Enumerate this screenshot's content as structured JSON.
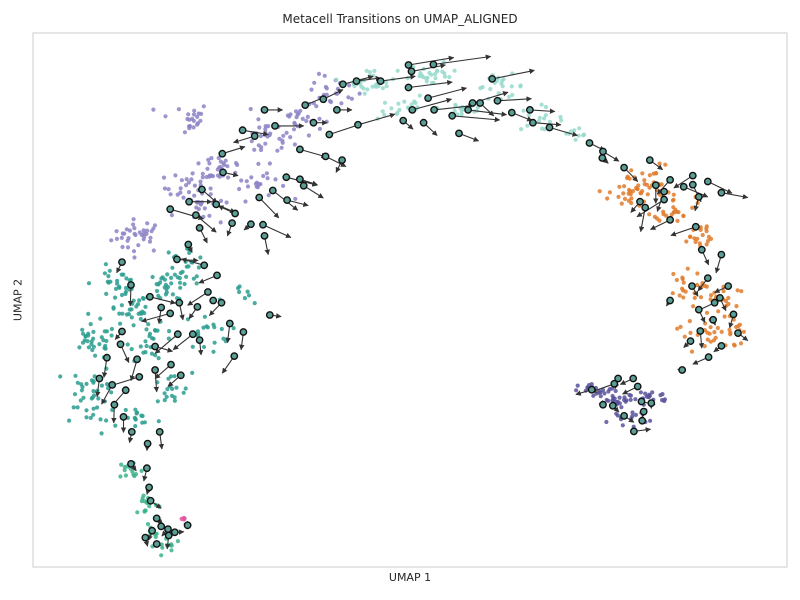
{
  "chart_data": {
    "type": "scatter",
    "title": "Metacell Transitions on UMAP_ALIGNED",
    "xlabel": "UMAP 1",
    "ylabel": "UMAP 2",
    "xlim": [
      0,
      100
    ],
    "ylim": [
      0,
      100
    ],
    "grid": false,
    "legend": "none",
    "colors": {
      "frame": "#cccccc",
      "arrow": "#333333",
      "metacell_edge": "#111111"
    },
    "clusters": [
      {
        "color": "#8c84c6",
        "centers": [
          [
            14,
            62
          ],
          [
            21,
            71
          ],
          [
            31,
            80
          ],
          [
            40,
            89
          ],
          [
            20,
            84
          ],
          [
            25,
            75
          ],
          [
            35,
            84
          ],
          [
            30,
            72
          ],
          [
            22,
            67
          ]
        ],
        "spread": [
          3.2,
          2.8
        ],
        "n": [
          35,
          30,
          28,
          24,
          22,
          26,
          24,
          22,
          20
        ]
      },
      {
        "color": "#97d9cb",
        "centers": [
          [
            45,
            91
          ],
          [
            53,
            92
          ],
          [
            62,
            90
          ],
          [
            67,
            84
          ],
          [
            72,
            80
          ],
          [
            49,
            86
          ],
          [
            57,
            86
          ]
        ],
        "spread": [
          3.0,
          2.0
        ],
        "n": [
          26,
          26,
          22,
          16,
          8,
          18,
          18
        ]
      },
      {
        "color": "#2a9d8f",
        "centers": [
          [
            8,
            42
          ],
          [
            13,
            48
          ],
          [
            18,
            52
          ],
          [
            8,
            34
          ],
          [
            16,
            42
          ],
          [
            20,
            57
          ],
          [
            11,
            53
          ],
          [
            23,
            44
          ],
          [
            18,
            33
          ],
          [
            28,
            50
          ],
          [
            8,
            28
          ],
          [
            14,
            28
          ]
        ],
        "spread": [
          2.8,
          3.0
        ],
        "n": [
          32,
          30,
          28,
          26,
          24,
          22,
          24,
          18,
          18,
          8,
          14,
          14
        ]
      },
      {
        "color": "#3bb38a",
        "centers": [
          [
            13,
            18
          ],
          [
            15,
            12
          ],
          [
            16,
            7
          ],
          [
            18,
            4
          ]
        ],
        "spread": [
          1.5,
          2.0
        ],
        "n": [
          14,
          14,
          12,
          10
        ]
      },
      {
        "color": "#e07b2c",
        "centers": [
          [
            79,
            70
          ],
          [
            85,
            68
          ],
          [
            88,
            62
          ],
          [
            86,
            52
          ],
          [
            91,
            50
          ],
          [
            92,
            44
          ],
          [
            88,
            44
          ],
          [
            82,
            72
          ]
        ],
        "spread": [
          2.4,
          3.0
        ],
        "n": [
          30,
          28,
          22,
          20,
          24,
          20,
          16,
          22
        ]
      },
      {
        "color": "#59549b",
        "centers": [
          [
            75,
            33
          ],
          [
            78,
            31
          ],
          [
            82,
            32
          ],
          [
            79,
            28
          ]
        ],
        "spread": [
          2.4,
          1.2
        ],
        "n": [
          22,
          22,
          18,
          16
        ]
      },
      {
        "color": "#e0559f",
        "centers": [
          [
            20,
            9
          ]
        ],
        "spread": [
          0.3,
          0.3
        ],
        "n": [
          4
        ]
      }
    ],
    "metacells": [
      {
        "x": 41.1,
        "y": 90.4,
        "dx": 4.0,
        "dy": 1.5
      },
      {
        "x": 42.9,
        "y": 91.0,
        "dx": 3.2,
        "dy": 0.6
      },
      {
        "x": 46.1,
        "y": 91.0,
        "dx": 4.6,
        "dy": 0.9
      },
      {
        "x": 49.8,
        "y": 94.0,
        "dx": 6.0,
        "dy": 1.4
      },
      {
        "x": 50.2,
        "y": 92.8,
        "dx": 4.5,
        "dy": 1.2
      },
      {
        "x": 53.1,
        "y": 94.1,
        "dx": 7.6,
        "dy": 1.5
      },
      {
        "x": 49.8,
        "y": 89.8,
        "dx": 5.8,
        "dy": 1.0
      },
      {
        "x": 52.4,
        "y": 87.8,
        "dx": 5.1,
        "dy": 1.9
      },
      {
        "x": 50.3,
        "y": 85.6,
        "dx": 5.2,
        "dy": 2.0
      },
      {
        "x": 53.2,
        "y": 85.6,
        "dx": 5.2,
        "dy": 0.8
      },
      {
        "x": 55.6,
        "y": 84.5,
        "dx": 6.3,
        "dy": -0.8
      },
      {
        "x": 57.7,
        "y": 85.6,
        "dx": 5.1,
        "dy": -0.9
      },
      {
        "x": 58.3,
        "y": 86.9,
        "dx": 4.7,
        "dy": 2.0
      },
      {
        "x": 60.9,
        "y": 91.4,
        "dx": 5.6,
        "dy": 1.6
      },
      {
        "x": 61.6,
        "y": 87.3,
        "dx": 4.5,
        "dy": 0.4
      },
      {
        "x": 63.5,
        "y": 85.1,
        "dx": 2.7,
        "dy": -1.5
      },
      {
        "x": 65.9,
        "y": 85.6,
        "dx": 3.3,
        "dy": -0.3
      },
      {
        "x": 66.3,
        "y": 83.2,
        "dx": 3.7,
        "dy": -0.4
      },
      {
        "x": 68.5,
        "y": 82.3,
        "dx": 3.7,
        "dy": -1.5
      },
      {
        "x": 56.5,
        "y": 81.2,
        "dx": 2.6,
        "dy": -1.4
      },
      {
        "x": 49.1,
        "y": 83.6,
        "dx": 1.3,
        "dy": -1.6
      },
      {
        "x": 51.8,
        "y": 83.2,
        "dx": 1.8,
        "dy": -2.4
      },
      {
        "x": 59.3,
        "y": 86.9,
        "dx": 1.8,
        "dy": -2.4
      },
      {
        "x": 73.8,
        "y": 79.4,
        "dx": 2.0,
        "dy": -1.4
      },
      {
        "x": 75.6,
        "y": 77.8,
        "dx": 2.1,
        "dy": -1.8
      },
      {
        "x": 38.5,
        "y": 87.6,
        "dx": 2.6,
        "dy": 1.8
      },
      {
        "x": 40.3,
        "y": 85.6,
        "dx": 2.0,
        "dy": 0.0
      },
      {
        "x": 36.1,
        "y": 86.5,
        "dx": 2.6,
        "dy": 1.5
      },
      {
        "x": 37.2,
        "y": 83.2,
        "dx": 1.8,
        "dy": 0.0
      },
      {
        "x": 43.1,
        "y": 82.8,
        "dx": 4.9,
        "dy": 2.0
      },
      {
        "x": 39.3,
        "y": 81.0,
        "dx": 4.1,
        "dy": 1.9
      },
      {
        "x": 30.7,
        "y": 85.6,
        "dx": 2.4,
        "dy": 0.0
      },
      {
        "x": 32.1,
        "y": 82.6,
        "dx": 3.8,
        "dy": 0.0
      },
      {
        "x": 27.8,
        "y": 81.8,
        "dx": 3.4,
        "dy": -0.8
      },
      {
        "x": 25.1,
        "y": 77.4,
        "dx": 3.0,
        "dy": 1.3
      },
      {
        "x": 29.4,
        "y": 80.7,
        "dx": -2.8,
        "dy": -1.2
      },
      {
        "x": 35.4,
        "y": 78.2,
        "dx": 3.5,
        "dy": -1.4
      },
      {
        "x": 38.8,
        "y": 76.9,
        "dx": 2.7,
        "dy": -1.9
      },
      {
        "x": 41.0,
        "y": 76.2,
        "dx": -0.8,
        "dy": -2.3
      },
      {
        "x": 33.6,
        "y": 73.0,
        "dx": 4.1,
        "dy": -1.5
      },
      {
        "x": 35.4,
        "y": 72.6,
        "dx": 2.3,
        "dy": -1.0
      },
      {
        "x": 31.8,
        "y": 70.5,
        "dx": 3.3,
        "dy": -3.7
      },
      {
        "x": 35.9,
        "y": 71.4,
        "dx": 2.6,
        "dy": -2.3
      },
      {
        "x": 30.0,
        "y": 69.2,
        "dx": 2.6,
        "dy": -3.8
      },
      {
        "x": 33.7,
        "y": 68.7,
        "dx": 2.8,
        "dy": -1.0
      },
      {
        "x": 25.2,
        "y": 73.9,
        "dx": 2.0,
        "dy": -0.6
      },
      {
        "x": 22.4,
        "y": 70.7,
        "dx": 2.0,
        "dy": -2.5
      },
      {
        "x": 20.7,
        "y": 68.4,
        "dx": 3.0,
        "dy": 0.0
      },
      {
        "x": 21.6,
        "y": 65.9,
        "dx": 2.7,
        "dy": -3.2
      },
      {
        "x": 24.3,
        "y": 67.9,
        "dx": 2.5,
        "dy": -1.5
      },
      {
        "x": 26.8,
        "y": 66.2,
        "dx": -2.2,
        "dy": 1.4
      },
      {
        "x": 28.9,
        "y": 64.2,
        "dx": -0.9,
        "dy": -1.1
      },
      {
        "x": 30.5,
        "y": 64.1,
        "dx": 3.7,
        "dy": -2.4
      },
      {
        "x": 30.7,
        "y": 62.0,
        "dx": 0.5,
        "dy": -3.5
      },
      {
        "x": 26.4,
        "y": 64.4,
        "dx": -0.6,
        "dy": -2.4
      },
      {
        "x": 18.2,
        "y": 67.0,
        "dx": 4.4,
        "dy": -1.8
      },
      {
        "x": 22.1,
        "y": 63.5,
        "dx": 1.0,
        "dy": -2.8
      },
      {
        "x": 19.1,
        "y": 57.6,
        "dx": 2.8,
        "dy": -0.2
      },
      {
        "x": 20.6,
        "y": 60.4,
        "dx": 0.5,
        "dy": -1.5
      },
      {
        "x": 22.7,
        "y": 56.5,
        "dx": -3.0,
        "dy": 1.2
      },
      {
        "x": 24.4,
        "y": 54.6,
        "dx": -2.4,
        "dy": -1.4
      },
      {
        "x": 11.8,
        "y": 57.1,
        "dx": -0.7,
        "dy": -2.0
      },
      {
        "x": 15.5,
        "y": 50.6,
        "dx": 3.4,
        "dy": -1.2
      },
      {
        "x": 13.0,
        "y": 52.8,
        "dx": -0.1,
        "dy": -3.9
      },
      {
        "x": 17.0,
        "y": 48.6,
        "dx": -0.3,
        "dy": -3.0
      },
      {
        "x": 18.2,
        "y": 47.5,
        "dx": -3.8,
        "dy": -1.5
      },
      {
        "x": 19.4,
        "y": 49.5,
        "dx": 0.5,
        "dy": -3.2
      },
      {
        "x": 21.8,
        "y": 48.7,
        "dx": -1.1,
        "dy": -2.2
      },
      {
        "x": 23.9,
        "y": 49.9,
        "dx": -0.1,
        "dy": -0.4
      },
      {
        "x": 25.0,
        "y": 49.5,
        "dx": -1.6,
        "dy": -2.4
      },
      {
        "x": 23.2,
        "y": 51.5,
        "dx": -2.7,
        "dy": -2.5
      },
      {
        "x": 26.1,
        "y": 45.6,
        "dx": -0.3,
        "dy": -3.6
      },
      {
        "x": 27.9,
        "y": 44.0,
        "dx": -0.3,
        "dy": -3.3
      },
      {
        "x": 26.7,
        "y": 39.5,
        "dx": -1.6,
        "dy": -3.2
      },
      {
        "x": 22.1,
        "y": 42.5,
        "dx": 0.2,
        "dy": -2.8
      },
      {
        "x": 21.2,
        "y": 43.6,
        "dx": -2.6,
        "dy": -2.9
      },
      {
        "x": 19.2,
        "y": 43.6,
        "dx": -3.0,
        "dy": -3.6
      },
      {
        "x": 18.3,
        "y": 37.9,
        "dx": -2.1,
        "dy": -2.6
      },
      {
        "x": 19.6,
        "y": 35.9,
        "dx": -1.7,
        "dy": -2.1
      },
      {
        "x": 11.8,
        "y": 44.1,
        "dx": -0.9,
        "dy": -1.5
      },
      {
        "x": 9.8,
        "y": 39.2,
        "dx": -0.4,
        "dy": -3.7
      },
      {
        "x": 11.6,
        "y": 41.7,
        "dx": 1.1,
        "dy": -3.4
      },
      {
        "x": 13.8,
        "y": 38.9,
        "dx": -0.8,
        "dy": -4.0
      },
      {
        "x": 16.2,
        "y": 41.3,
        "dx": 2.3,
        "dy": -0.9
      },
      {
        "x": 16.2,
        "y": 36.9,
        "dx": 0.2,
        "dy": -4.1
      },
      {
        "x": 14.1,
        "y": 35.6,
        "dx": -3.9,
        "dy": -1.7
      },
      {
        "x": 12.3,
        "y": 33.1,
        "dx": -1.9,
        "dy": -3.1
      },
      {
        "x": 10.5,
        "y": 34.1,
        "dx": -1.4,
        "dy": -3.6
      },
      {
        "x": 8.8,
        "y": 35.3,
        "dx": -0.3,
        "dy": -3.4
      },
      {
        "x": 10.8,
        "y": 30.4,
        "dx": -0.1,
        "dy": -3.4
      },
      {
        "x": 12.0,
        "y": 28.1,
        "dx": 0.0,
        "dy": -2.9
      },
      {
        "x": 13.1,
        "y": 25.3,
        "dx": -0.3,
        "dy": -2.0
      },
      {
        "x": 15.2,
        "y": 23.1,
        "dx": -0.1,
        "dy": -1.3
      },
      {
        "x": 16.8,
        "y": 25.3,
        "dx": 0.3,
        "dy": -3.2
      },
      {
        "x": 13.0,
        "y": 19.3,
        "dx": 0.7,
        "dy": -1.3
      },
      {
        "x": 15.1,
        "y": 18.5,
        "dx": -0.4,
        "dy": -2.4
      },
      {
        "x": 15.4,
        "y": 14.9,
        "dx": -0.3,
        "dy": -1.3
      },
      {
        "x": 15.6,
        "y": 12.4,
        "dx": 1.4,
        "dy": -1.4
      },
      {
        "x": 16.4,
        "y": 9.1,
        "dx": 0.8,
        "dy": -1.1
      },
      {
        "x": 17.0,
        "y": 7.6,
        "dx": 1.1,
        "dy": -0.9
      },
      {
        "x": 17.9,
        "y": 7.1,
        "dx": -0.8,
        "dy": -1.3
      },
      {
        "x": 18.8,
        "y": 6.5,
        "dx": 1.2,
        "dy": 0.1
      },
      {
        "x": 15.8,
        "y": 6.8,
        "dx": -0.5,
        "dy": -1.8
      },
      {
        "x": 14.9,
        "y": 5.5,
        "dx": 0.3,
        "dy": -1.6
      },
      {
        "x": 16.4,
        "y": 4.3,
        "dx": 0.5,
        "dy": -0.3
      },
      {
        "x": 18.0,
        "y": 5.9,
        "dx": -0.2,
        "dy": -2.5
      },
      {
        "x": 20.5,
        "y": 7.8,
        "dx": 0.1,
        "dy": -0.2
      },
      {
        "x": 31.4,
        "y": 47.2,
        "dx": 1.5,
        "dy": -0.3
      },
      {
        "x": 75.5,
        "y": 76.6,
        "dx": 0.8,
        "dy": -1.0
      },
      {
        "x": 78.4,
        "y": 74.8,
        "dx": 1.8,
        "dy": -2.6
      },
      {
        "x": 81.8,
        "y": 76.2,
        "dx": 1.7,
        "dy": -1.8
      },
      {
        "x": 82.6,
        "y": 71.5,
        "dx": 0.0,
        "dy": -3.4
      },
      {
        "x": 80.5,
        "y": 68.4,
        "dx": -1.2,
        "dy": -2.0
      },
      {
        "x": 81.2,
        "y": 67.3,
        "dx": -0.6,
        "dy": -4.5
      },
      {
        "x": 83.7,
        "y": 68.8,
        "dx": -3.6,
        "dy": -3.2
      },
      {
        "x": 83.7,
        "y": 70.3,
        "dx": -0.9,
        "dy": -3.7
      },
      {
        "x": 84.5,
        "y": 72.5,
        "dx": -1.7,
        "dy": -2.7
      },
      {
        "x": 86.3,
        "y": 71.2,
        "dx": 3.2,
        "dy": -1.9
      },
      {
        "x": 87.5,
        "y": 71.6,
        "dx": 1.1,
        "dy": -3.2
      },
      {
        "x": 87.5,
        "y": 73.3,
        "dx": -2.5,
        "dy": -2.3
      },
      {
        "x": 88.3,
        "y": 69.3,
        "dx": -0.5,
        "dy": -2.6
      },
      {
        "x": 89.5,
        "y": 72.2,
        "dx": 3.2,
        "dy": -2.2
      },
      {
        "x": 91.3,
        "y": 70.1,
        "dx": 3.5,
        "dy": -0.9
      },
      {
        "x": 87.9,
        "y": 63.7,
        "dx": -3.3,
        "dy": -1.6
      },
      {
        "x": 84.5,
        "y": 65.0,
        "dx": -2.6,
        "dy": -1.8
      },
      {
        "x": 88.7,
        "y": 59.4,
        "dx": 0.9,
        "dy": -2.8
      },
      {
        "x": 91.3,
        "y": 58.5,
        "dx": -0.7,
        "dy": -3.4
      },
      {
        "x": 89.5,
        "y": 54.1,
        "dx": -1.3,
        "dy": -2.4
      },
      {
        "x": 92.2,
        "y": 52.6,
        "dx": -1.8,
        "dy": -1.2
      },
      {
        "x": 91.1,
        "y": 50.4,
        "dx": 0.8,
        "dy": -2.4
      },
      {
        "x": 90.4,
        "y": 49.5,
        "dx": -2.4,
        "dy": -1.6
      },
      {
        "x": 92.9,
        "y": 47.3,
        "dx": -0.5,
        "dy": -2.5
      },
      {
        "x": 90.2,
        "y": 46.3,
        "dx": 0.3,
        "dy": -1.0
      },
      {
        "x": 88.3,
        "y": 48.2,
        "dx": 0.8,
        "dy": -2.4
      },
      {
        "x": 87.4,
        "y": 52.6,
        "dx": 0.8,
        "dy": -1.9
      },
      {
        "x": 93.5,
        "y": 43.8,
        "dx": 1.3,
        "dy": -1.4
      },
      {
        "x": 88.5,
        "y": 44.2,
        "dx": 0.2,
        "dy": -3.2
      },
      {
        "x": 87.2,
        "y": 42.3,
        "dx": -0.9,
        "dy": -1.2
      },
      {
        "x": 89.6,
        "y": 39.3,
        "dx": -2.1,
        "dy": -1.3
      },
      {
        "x": 91.3,
        "y": 41.4,
        "dx": -1.0,
        "dy": -1.1
      },
      {
        "x": 86.1,
        "y": 36.9,
        "dx": -0.6,
        "dy": 0.1
      },
      {
        "x": 84.5,
        "y": 49.9,
        "dx": -0.5,
        "dy": -1.0
      },
      {
        "x": 74.1,
        "y": 33.2,
        "dx": -2.1,
        "dy": -0.9
      },
      {
        "x": 75.6,
        "y": 30.4,
        "dx": 0.1,
        "dy": -0.2
      },
      {
        "x": 77.1,
        "y": 34.3,
        "dx": -3.0,
        "dy": -1.5
      },
      {
        "x": 77.6,
        "y": 35.3,
        "dx": -0.4,
        "dy": -1.9
      },
      {
        "x": 79.6,
        "y": 35.3,
        "dx": -1.7,
        "dy": -1.1
      },
      {
        "x": 80.2,
        "y": 33.8,
        "dx": -2.0,
        "dy": -1.4
      },
      {
        "x": 76.9,
        "y": 30.2,
        "dx": 0.8,
        "dy": -1.2
      },
      {
        "x": 80.7,
        "y": 31.0,
        "dx": 1.8,
        "dy": -0.6
      },
      {
        "x": 78.4,
        "y": 28.3,
        "dx": 1.3,
        "dy": -1.2
      },
      {
        "x": 81.0,
        "y": 29.1,
        "dx": -0.2,
        "dy": -1.1
      },
      {
        "x": 80.8,
        "y": 27.4,
        "dx": 0.4,
        "dy": -0.4
      },
      {
        "x": 79.7,
        "y": 25.4,
        "dx": 2.2,
        "dy": 0.4
      },
      {
        "x": 82.0,
        "y": 30.7,
        "dx": 0.0,
        "dy": -1.0
      }
    ]
  }
}
